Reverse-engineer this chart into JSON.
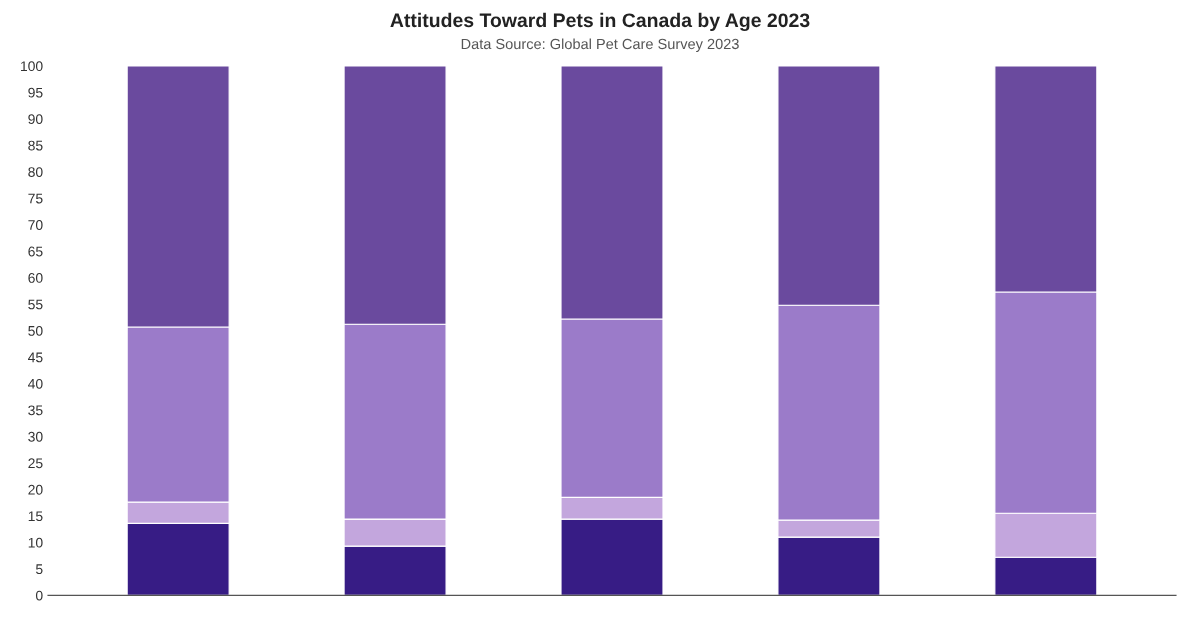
{
  "chart_data": {
    "type": "bar",
    "title": "Attitudes Toward Pets in Canada by Age 2023",
    "subtitle": "Data Source: Global Pet Care Survey 2023",
    "categories": [
      null,
      null,
      null,
      null,
      null
    ],
    "stacked": true,
    "grid": false,
    "ylim": [
      0,
      100
    ],
    "yticks": [
      0,
      5,
      10,
      15,
      20,
      25,
      30,
      35,
      40,
      45,
      50,
      55,
      60,
      65,
      70,
      75,
      80,
      85,
      90,
      95,
      100
    ],
    "series": [
      {
        "color": "#371c85",
        "values": [
          13.6,
          9.3,
          14.4,
          11.0,
          7.2
        ]
      },
      {
        "color": "#c3a6dd",
        "values": [
          4.0,
          5.1,
          4.1,
          3.2,
          8.3
        ]
      },
      {
        "color": "#9b7bc9",
        "values": [
          33.1,
          36.8,
          33.7,
          40.6,
          41.8
        ]
      },
      {
        "color": "#6a4a9e",
        "values": [
          49.3,
          48.8,
          47.8,
          45.2,
          42.7
        ]
      }
    ]
  }
}
